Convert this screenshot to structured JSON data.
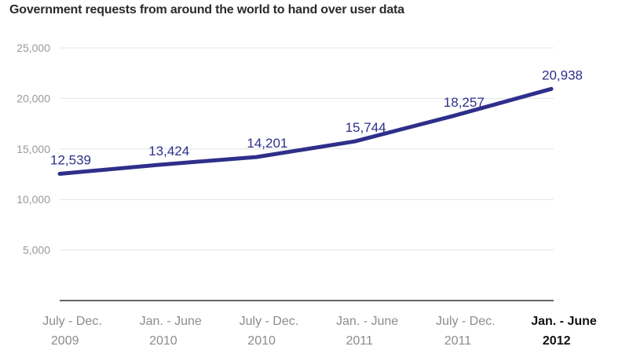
{
  "chart_data": {
    "type": "line",
    "title": "Government requests from around the world to hand over user data",
    "categories": [
      [
        "July - Dec.",
        "2009"
      ],
      [
        "Jan. - June",
        "2010"
      ],
      [
        "July - Dec.",
        "2010"
      ],
      [
        "Jan. - June",
        "2011"
      ],
      [
        "July - Dec.",
        "2011"
      ],
      [
        "Jan. - June",
        "2012"
      ]
    ],
    "highlighted_category_index": 5,
    "series": [
      {
        "values": [
          12539,
          13424,
          14201,
          15744,
          18257,
          20938
        ],
        "color": "#2e2f8a"
      }
    ],
    "data_labels": [
      "12,539",
      "13,424",
      "14,201",
      "15,744",
      "18,257",
      "20,938"
    ],
    "y_ticks": [
      5000,
      10000,
      15000,
      20000,
      25000
    ],
    "y_tick_labels": [
      "5,000",
      "10,000",
      "15,000",
      "20,000",
      "25,000"
    ],
    "ylim": [
      0,
      25000
    ],
    "grid": true,
    "xlabel": "",
    "ylabel": ""
  }
}
